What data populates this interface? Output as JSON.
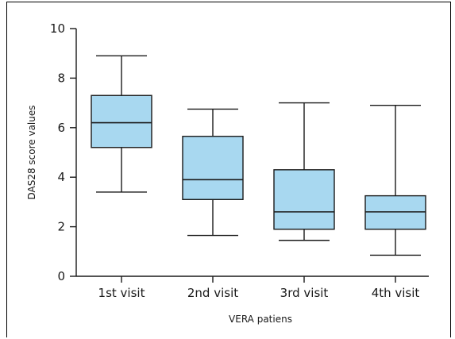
{
  "chart_data": {
    "type": "box",
    "xlabel": "VERA patiens",
    "ylabel": "DAS28 score values",
    "ylim": [
      0,
      10
    ],
    "yticks": [
      0,
      2,
      4,
      6,
      8,
      10
    ],
    "categories": [
      "1st visit",
      "2nd visit",
      "3rd visit",
      "4th visit"
    ],
    "boxes": [
      {
        "category": "1st visit",
        "min": 3.4,
        "q1": 5.2,
        "median": 6.2,
        "q3": 7.3,
        "max": 8.9
      },
      {
        "category": "2nd visit",
        "min": 1.65,
        "q1": 3.1,
        "median": 3.9,
        "q3": 5.65,
        "max": 6.75
      },
      {
        "category": "3rd visit",
        "min": 1.45,
        "q1": 1.9,
        "median": 2.6,
        "q3": 4.3,
        "max": 7.0
      },
      {
        "category": "4th visit",
        "min": 0.85,
        "q1": 1.9,
        "median": 2.6,
        "q3": 3.25,
        "max": 6.9
      }
    ],
    "box_fill": "#a8d8f0",
    "line_color": "#1a1a1a",
    "grid": false,
    "legend": "none"
  }
}
